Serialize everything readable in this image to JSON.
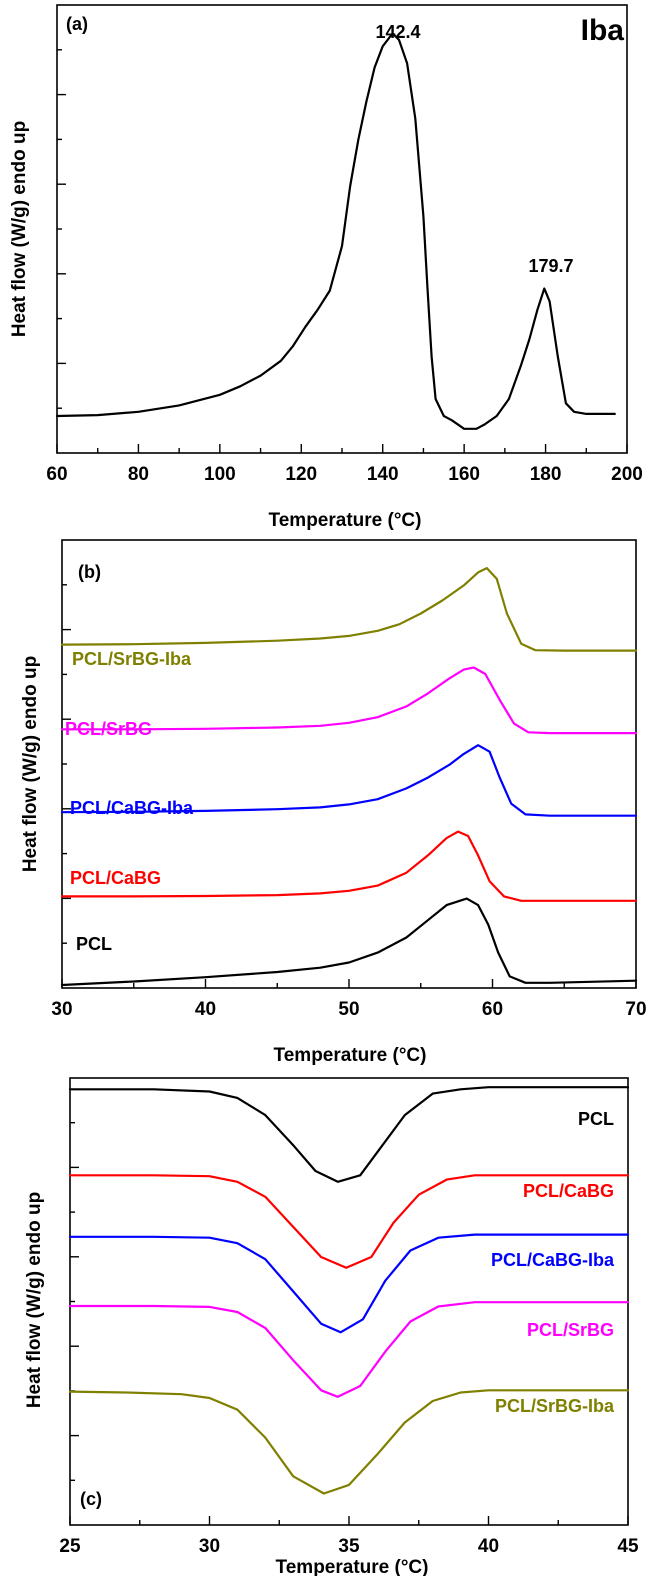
{
  "chart_data": [
    {
      "id": "a",
      "type": "line",
      "panel_label": "(a)",
      "sample_label": "Iba",
      "xlabel": "Temperature (°C)",
      "ylabel": "Heat flow (W/g) endo up",
      "xlim": [
        60,
        200
      ],
      "ylim": [
        0,
        1
      ],
      "x_ticks": [
        60,
        80,
        100,
        120,
        140,
        160,
        180,
        200
      ],
      "x_tick_labels": [
        "60",
        "80",
        "100",
        "120",
        "140",
        "160",
        "180",
        "200"
      ],
      "y_tick_labels_shown": false,
      "annotations": [
        {
          "text": "142.4",
          "x": 142.4,
          "y": 0.99
        },
        {
          "text": "179.7",
          "x": 179.7,
          "y": 0.4
        }
      ],
      "series": [
        {
          "color": "#000000",
          "label_text": "",
          "x": [
            60,
            70,
            80,
            90,
            100,
            105,
            110,
            115,
            118,
            121,
            124,
            127,
            130,
            132,
            134,
            136,
            138,
            140,
            142.4,
            144,
            146,
            148,
            150,
            151,
            152,
            153,
            155,
            157,
            160,
            163,
            165,
            168,
            171,
            174,
            176,
            178,
            179.7,
            181,
            183,
            185,
            187,
            190,
            193,
            197
          ],
          "y": [
            0.08,
            0.082,
            0.09,
            0.105,
            0.13,
            0.15,
            0.175,
            0.21,
            0.245,
            0.29,
            0.33,
            0.375,
            0.48,
            0.62,
            0.73,
            0.82,
            0.9,
            0.95,
            0.98,
            0.965,
            0.91,
            0.78,
            0.55,
            0.38,
            0.22,
            0.12,
            0.08,
            0.07,
            0.05,
            0.05,
            0.06,
            0.08,
            0.12,
            0.2,
            0.26,
            0.33,
            0.38,
            0.35,
            0.22,
            0.11,
            0.09,
            0.085,
            0.085,
            0.085
          ]
        }
      ]
    },
    {
      "id": "b",
      "type": "line",
      "panel_label": "(b)",
      "xlabel": "Temperature (°C)",
      "ylabel": "Heat flow (W/g) endo up",
      "xlim": [
        30,
        70
      ],
      "ylim": [
        0,
        1
      ],
      "x_ticks": [
        30,
        40,
        50,
        60,
        70
      ],
      "x_tick_labels": [
        "30",
        "40",
        "50",
        "60",
        "70"
      ],
      "y_tick_labels_shown": false,
      "series": [
        {
          "label_text": "PCL/SrBG-Iba",
          "color": "#808000",
          "x": [
            30,
            35,
            40,
            45,
            48,
            50,
            52,
            53.5,
            55,
            56.5,
            58,
            59,
            59.6,
            60.3,
            61,
            62,
            63,
            65,
            70
          ],
          "y": [
            0.788,
            0.789,
            0.792,
            0.797,
            0.802,
            0.808,
            0.82,
            0.835,
            0.86,
            0.89,
            0.925,
            0.955,
            0.965,
            0.94,
            0.86,
            0.79,
            0.775,
            0.774,
            0.774
          ]
        },
        {
          "label_text": "PCL/SrBG",
          "color": "#FF00FF",
          "x": [
            30,
            35,
            40,
            45,
            48,
            50,
            52,
            54,
            55.5,
            57,
            58,
            58.7,
            59.5,
            60.5,
            61.5,
            62.5,
            64,
            70
          ],
          "y": [
            0.592,
            0.592,
            0.593,
            0.596,
            0.6,
            0.607,
            0.62,
            0.645,
            0.675,
            0.71,
            0.73,
            0.735,
            0.72,
            0.66,
            0.605,
            0.585,
            0.583,
            0.583
          ]
        },
        {
          "label_text": "PCL/CaBG-Iba",
          "color": "#0000FF",
          "x": [
            30,
            35,
            40,
            45,
            48,
            50,
            52,
            54,
            55.5,
            57,
            58,
            59,
            59.8,
            60.5,
            61.3,
            62.3,
            64,
            70
          ],
          "y": [
            0.4,
            0.401,
            0.403,
            0.407,
            0.411,
            0.418,
            0.43,
            0.455,
            0.48,
            0.51,
            0.535,
            0.555,
            0.54,
            0.48,
            0.42,
            0.395,
            0.392,
            0.392
          ]
        },
        {
          "label_text": "PCL/CaBG",
          "color": "#FF0000",
          "x": [
            30,
            35,
            40,
            45,
            48,
            50,
            52,
            54,
            55.5,
            56.8,
            57.6,
            58.3,
            59,
            59.8,
            60.8,
            62,
            64,
            70
          ],
          "y": [
            0.205,
            0.205,
            0.206,
            0.208,
            0.212,
            0.218,
            0.23,
            0.26,
            0.3,
            0.34,
            0.355,
            0.345,
            0.3,
            0.24,
            0.205,
            0.195,
            0.195,
            0.195
          ]
        },
        {
          "label_text": "PCL",
          "color": "#000000",
          "x": [
            30,
            35,
            40,
            45,
            48,
            50,
            52,
            54,
            55.5,
            56.8,
            58.2,
            59,
            59.7,
            60.4,
            61.2,
            62.3,
            64,
            70
          ],
          "y": [
            0.0,
            0.008,
            0.018,
            0.03,
            0.04,
            0.052,
            0.075,
            0.11,
            0.15,
            0.185,
            0.2,
            0.185,
            0.14,
            0.075,
            0.02,
            0.005,
            0.005,
            0.01
          ]
        }
      ]
    },
    {
      "id": "c",
      "type": "line",
      "panel_label": "(c)",
      "xlabel": "Temperature (°C)",
      "ylabel": "Heat flow (W/g) endo up",
      "xlim": [
        25,
        45
      ],
      "ylim": [
        0,
        1
      ],
      "x_ticks": [
        25,
        30,
        35,
        40,
        45
      ],
      "x_tick_labels": [
        "25",
        "30",
        "35",
        "40",
        "45"
      ],
      "y_tick_labels_shown": false,
      "series": [
        {
          "label_text": "PCL",
          "color": "#000000",
          "x": [
            25,
            28,
            30,
            31,
            32,
            33,
            33.8,
            34.6,
            35.4,
            36.2,
            37,
            38,
            39,
            40,
            42,
            45
          ],
          "y": [
            0.99,
            0.99,
            0.985,
            0.97,
            0.93,
            0.86,
            0.8,
            0.775,
            0.79,
            0.86,
            0.93,
            0.98,
            0.99,
            0.995,
            0.995,
            0.995
          ]
        },
        {
          "label_text": "PCL/CaBG",
          "color": "#FF0000",
          "x": [
            25,
            28,
            30,
            31,
            32,
            33,
            34,
            34.9,
            35.8,
            36.6,
            37.5,
            38.5,
            39.5,
            41,
            45
          ],
          "y": [
            0.79,
            0.79,
            0.788,
            0.775,
            0.74,
            0.67,
            0.6,
            0.575,
            0.6,
            0.68,
            0.745,
            0.78,
            0.79,
            0.79,
            0.79
          ]
        },
        {
          "label_text": "PCL/CaBG-Iba",
          "color": "#0000FF",
          "x": [
            25,
            28,
            30,
            31,
            32,
            33,
            34,
            34.7,
            35.5,
            36.3,
            37.2,
            38.2,
            39.5,
            41,
            45
          ],
          "y": [
            0.647,
            0.647,
            0.645,
            0.632,
            0.595,
            0.52,
            0.445,
            0.425,
            0.455,
            0.545,
            0.615,
            0.645,
            0.652,
            0.652,
            0.652
          ]
        },
        {
          "label_text": "PCL/SrBG",
          "color": "#FF00FF",
          "x": [
            25,
            28,
            30,
            31,
            32,
            33,
            34,
            34.6,
            35.4,
            36.3,
            37.2,
            38.2,
            39.5,
            41,
            45
          ],
          "y": [
            0.486,
            0.486,
            0.484,
            0.472,
            0.435,
            0.36,
            0.29,
            0.275,
            0.3,
            0.38,
            0.45,
            0.485,
            0.495,
            0.495,
            0.495
          ]
        },
        {
          "label_text": "PCL/SrBG-Iba",
          "color": "#808000",
          "x": [
            25,
            27,
            29,
            30,
            31,
            32,
            33,
            34.1,
            35,
            36,
            37,
            38,
            39,
            40,
            42,
            45
          ],
          "y": [
            0.287,
            0.285,
            0.281,
            0.272,
            0.245,
            0.18,
            0.09,
            0.05,
            0.07,
            0.14,
            0.215,
            0.265,
            0.285,
            0.29,
            0.29,
            0.29
          ]
        }
      ]
    }
  ]
}
